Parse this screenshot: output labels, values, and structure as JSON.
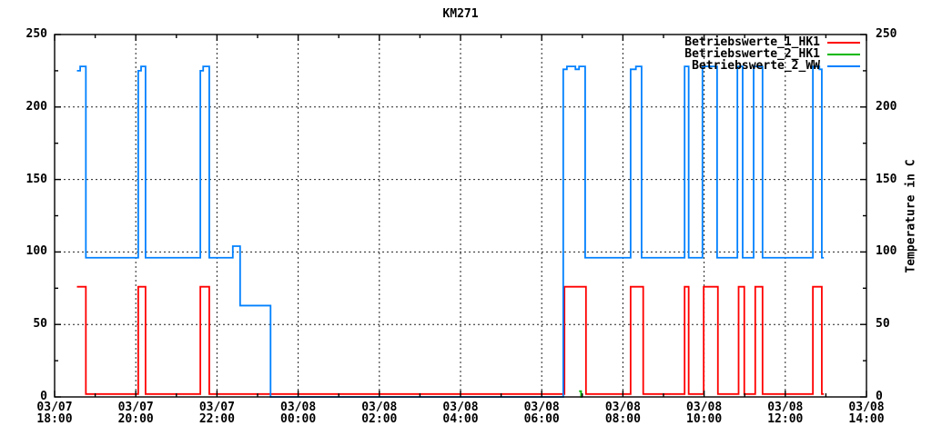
{
  "title": "KM271",
  "y_axis": {
    "label_right": "Temperature in C",
    "min": 0,
    "max": 250,
    "major_step": 50,
    "minor_step": 25,
    "tick_labels": [
      "0",
      "50",
      "100",
      "150",
      "200",
      "250"
    ]
  },
  "x_axis": {
    "hours_span": 20,
    "major_step_h": 2,
    "minor_step_h": 1,
    "ticks": [
      {
        "date": "03/07",
        "time": "18:00"
      },
      {
        "date": "03/07",
        "time": "20:00"
      },
      {
        "date": "03/07",
        "time": "22:00"
      },
      {
        "date": "03/08",
        "time": "00:00"
      },
      {
        "date": "03/08",
        "time": "02:00"
      },
      {
        "date": "03/08",
        "time": "04:00"
      },
      {
        "date": "03/08",
        "time": "06:00"
      },
      {
        "date": "03/08",
        "time": "08:00"
      },
      {
        "date": "03/08",
        "time": "10:00"
      },
      {
        "date": "03/08",
        "time": "12:00"
      },
      {
        "date": "03/08",
        "time": "14:00"
      }
    ]
  },
  "legend": [
    {
      "label": "Betriebswerte_1_HK1",
      "color": "#ff0000"
    },
    {
      "label": "Betriebswerte_2_HK1",
      "color": "#00b800"
    },
    {
      "label": "Betriebswerte_2_WW",
      "color": "#0080ff"
    }
  ],
  "colors": {
    "series_red": "#ff0000",
    "series_green": "#00b800",
    "series_blue": "#0080ff",
    "grid": "#222222",
    "border": "#000000"
  },
  "chart_data": {
    "type": "line",
    "subtype": "steps",
    "title": "KM271",
    "xlabel": "",
    "ylabel": "Temperature in C",
    "ylim": [
      0,
      250
    ],
    "x_unit": "hours since 03/07 18:00",
    "x_range_h": [
      0,
      20
    ],
    "grid": true,
    "legend_position": "top-right-inside",
    "series": [
      {
        "name": "Betriebswerte_1_HK1",
        "color": "#ff0000",
        "style": "steps",
        "end_t": 18.95,
        "points": [
          [
            0.55,
            76
          ],
          [
            0.77,
            2
          ],
          [
            2.06,
            76
          ],
          [
            2.24,
            2
          ],
          [
            3.59,
            76
          ],
          [
            3.81,
            2
          ],
          [
            12.56,
            76
          ],
          [
            13.09,
            2
          ],
          [
            14.19,
            76
          ],
          [
            14.5,
            2
          ],
          [
            15.52,
            76
          ],
          [
            15.62,
            2
          ],
          [
            15.99,
            76
          ],
          [
            16.34,
            2
          ],
          [
            16.85,
            76
          ],
          [
            16.99,
            2
          ],
          [
            17.26,
            76
          ],
          [
            17.44,
            2
          ],
          [
            18.68,
            76
          ],
          [
            18.9,
            2
          ]
        ]
      },
      {
        "name": "Betriebswerte_2_HK1",
        "color": "#00b800",
        "style": "steps",
        "end_t": 13.0,
        "points": [
          [
            12.92,
            4
          ],
          [
            12.97,
            0
          ]
        ]
      },
      {
        "name": "Betriebswerte_2_WW",
        "color": "#0080ff",
        "style": "steps",
        "end_t": 18.95,
        "points": [
          [
            0.55,
            225
          ],
          [
            0.63,
            228
          ],
          [
            0.77,
            96
          ],
          [
            2.06,
            225
          ],
          [
            2.13,
            228
          ],
          [
            2.24,
            96
          ],
          [
            3.59,
            225
          ],
          [
            3.66,
            228
          ],
          [
            3.81,
            96
          ],
          [
            4.39,
            104
          ],
          [
            4.57,
            63
          ],
          [
            5.32,
            0
          ],
          [
            12.53,
            226
          ],
          [
            12.62,
            228
          ],
          [
            12.83,
            226
          ],
          [
            12.92,
            228
          ],
          [
            13.07,
            96
          ],
          [
            14.19,
            226
          ],
          [
            14.32,
            228
          ],
          [
            14.46,
            96
          ],
          [
            15.52,
            228
          ],
          [
            15.62,
            96
          ],
          [
            15.96,
            228
          ],
          [
            16.32,
            96
          ],
          [
            16.82,
            228
          ],
          [
            16.95,
            96
          ],
          [
            17.22,
            228
          ],
          [
            17.44,
            96
          ],
          [
            18.68,
            228
          ],
          [
            18.84,
            226
          ],
          [
            18.9,
            96
          ]
        ]
      }
    ]
  }
}
